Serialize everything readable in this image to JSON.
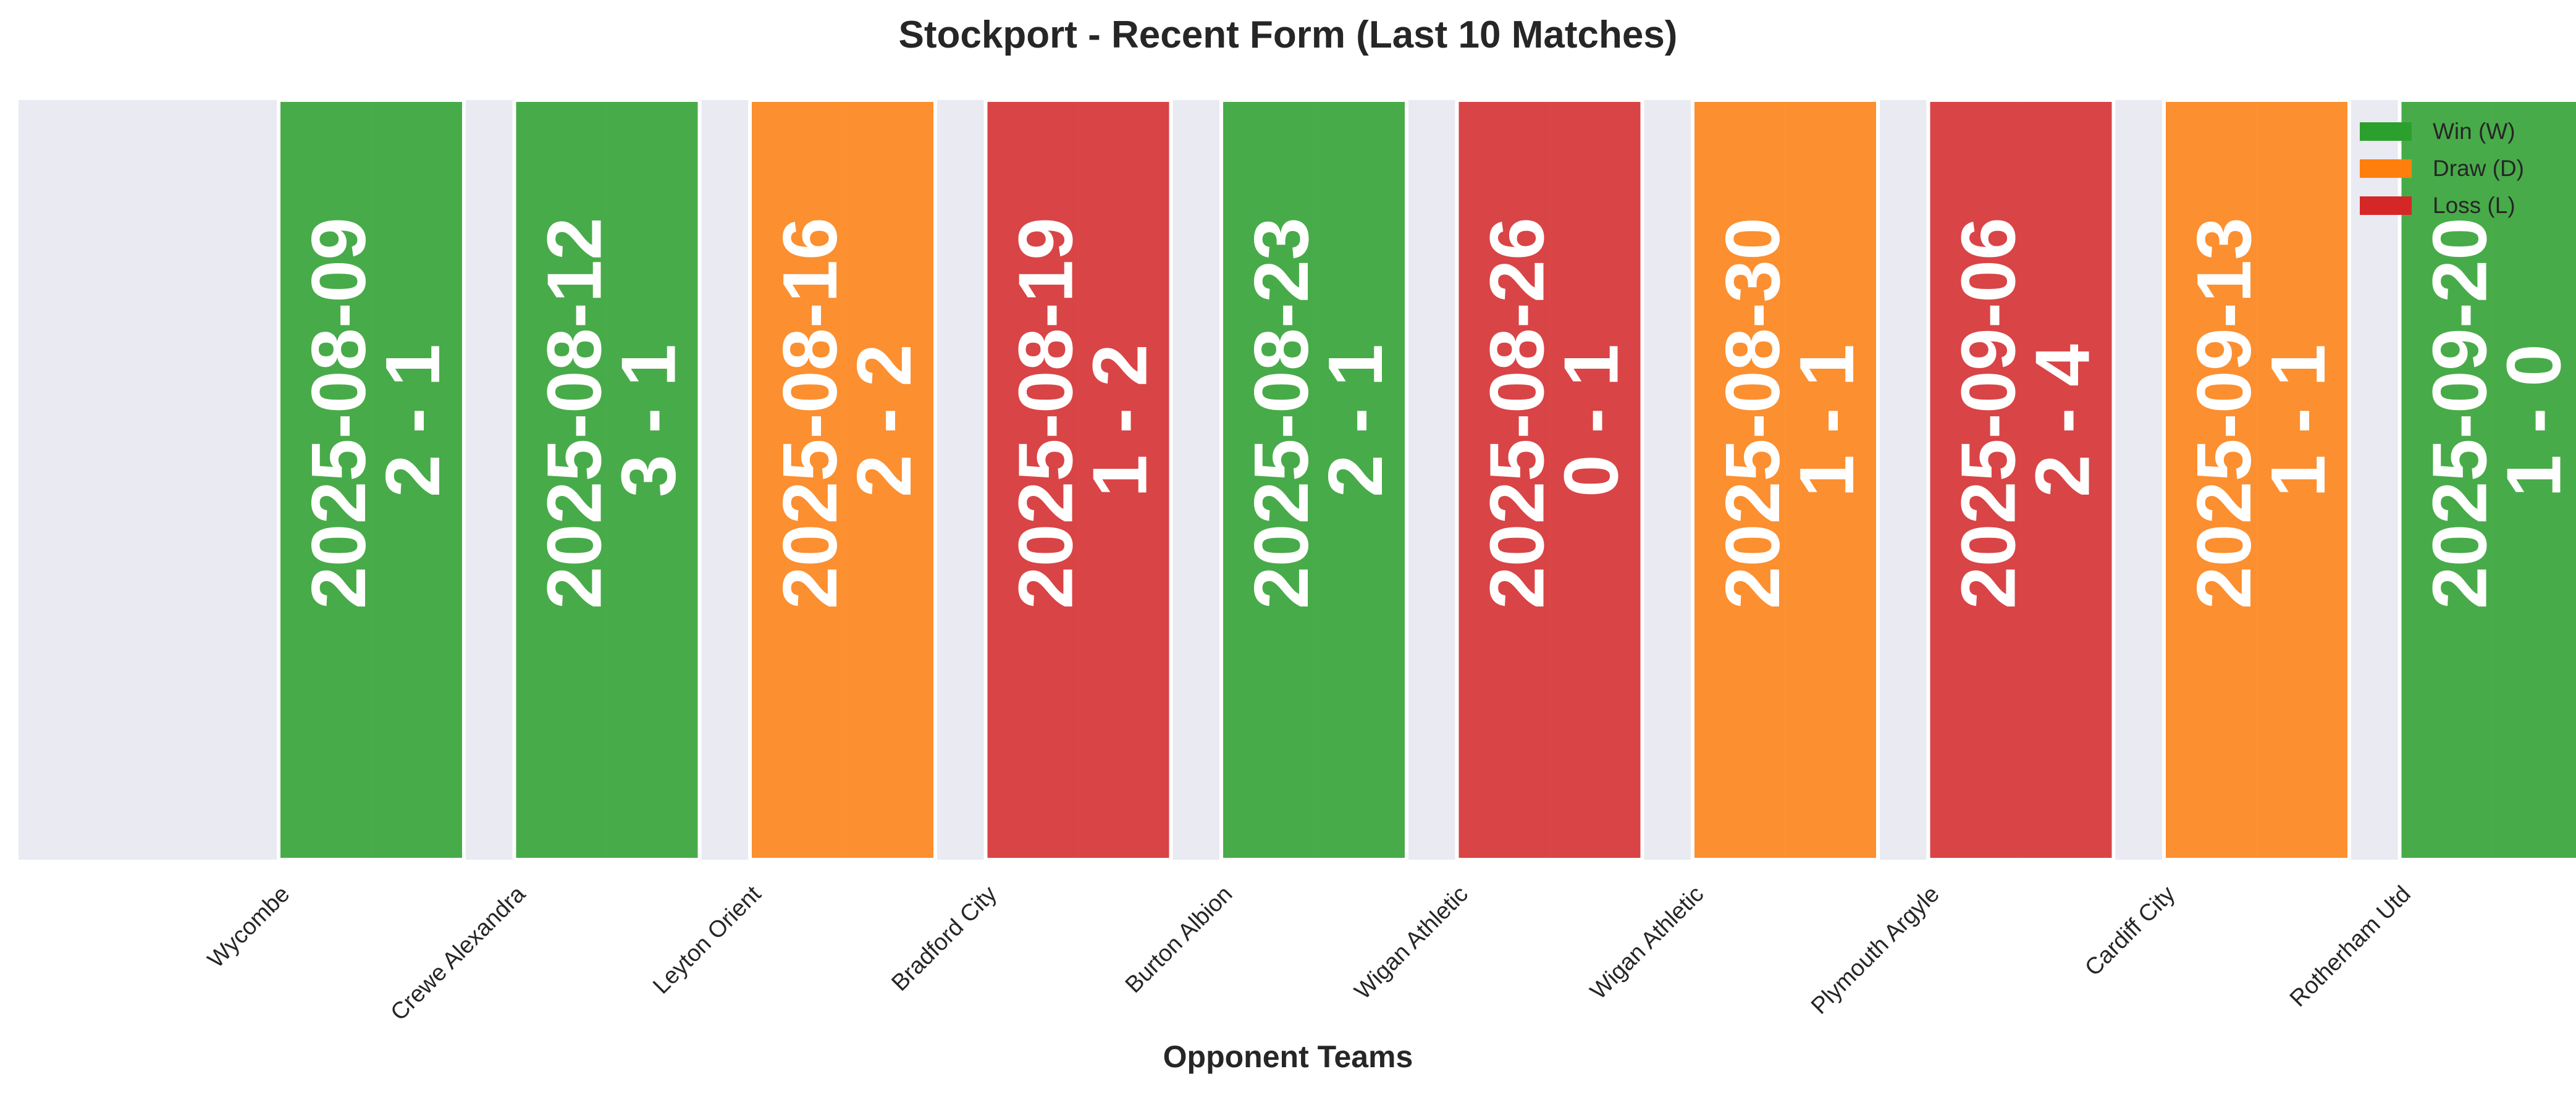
{
  "chart_data": {
    "type": "bar",
    "title": "Stockport - Recent Form (Last 10 Matches)",
    "xlabel": "Opponent Teams",
    "ylabel": "",
    "grid": true,
    "legend_position": "top-right",
    "categories": [
      "Wycombe",
      "Crewe Alexandra",
      "Leyton Orient",
      "Bradford City",
      "Burton Albion",
      "Wigan Athletic",
      "Wigan Athletic",
      "Plymouth Argyle",
      "Cardiff City",
      "Rotherham Utd"
    ],
    "matches": [
      {
        "opponent": "Wycombe",
        "date": "2025-08-09",
        "score": "2 - 1",
        "result": "W"
      },
      {
        "opponent": "Crewe Alexandra",
        "date": "2025-08-12",
        "score": "3 - 1",
        "result": "W"
      },
      {
        "opponent": "Leyton Orient",
        "date": "2025-08-16",
        "score": "2 - 2",
        "result": "D"
      },
      {
        "opponent": "Bradford City",
        "date": "2025-08-19",
        "score": "1 - 2",
        "result": "L"
      },
      {
        "opponent": "Burton Albion",
        "date": "2025-08-23",
        "score": "2 - 1",
        "result": "W"
      },
      {
        "opponent": "Wigan Athletic",
        "date": "2025-08-26",
        "score": "0 - 1",
        "result": "L"
      },
      {
        "opponent": "Wigan Athletic",
        "date": "2025-08-30",
        "score": "1 - 1",
        "result": "D"
      },
      {
        "opponent": "Plymouth Argyle",
        "date": "2025-09-06",
        "score": "2 - 4",
        "result": "L"
      },
      {
        "opponent": "Cardiff City",
        "date": "2025-09-13",
        "score": "1 - 1",
        "result": "D"
      },
      {
        "opponent": "Rotherham Utd",
        "date": "2025-09-20",
        "score": "1 - 0",
        "result": "W"
      }
    ],
    "values": [
      1,
      1,
      1,
      1,
      1,
      1,
      1,
      1,
      1,
      1
    ],
    "legend": [
      {
        "key": "W",
        "label": "Win (W)",
        "color": "#2ca02c"
      },
      {
        "key": "D",
        "label": "Draw (D)",
        "color": "#ff7f0e"
      },
      {
        "key": "L",
        "label": "Loss (L)",
        "color": "#d62728"
      }
    ],
    "colors": {
      "W": "#2ca02c",
      "D": "#ff7f0e",
      "L": "#d62728",
      "plot_background": "#eaeaf2",
      "bar_edge": "#ffffff",
      "bar_text": "#ffffff",
      "title_text": "#262626",
      "tick_text": "#262626"
    }
  }
}
